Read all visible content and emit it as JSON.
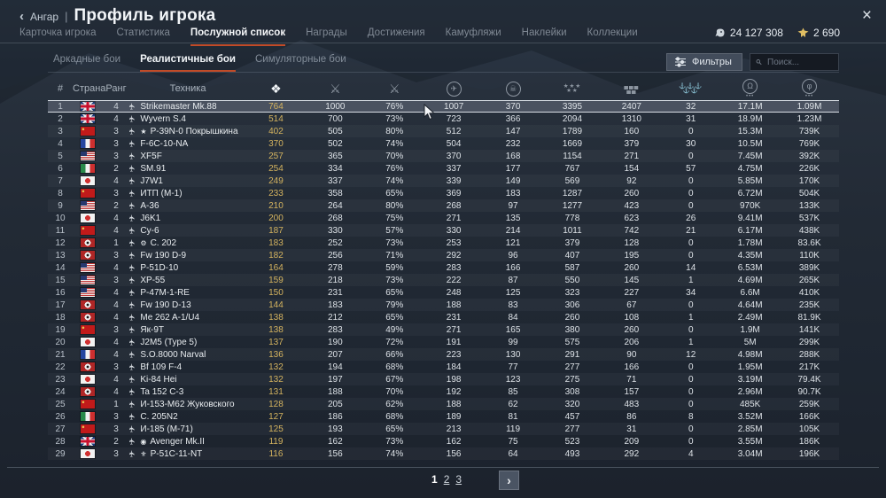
{
  "header": {
    "back_chevron": "‹",
    "back_label": "Ангар",
    "separator": "|",
    "title": "Профиль игрока",
    "close_icon": "×"
  },
  "tabs": [
    {
      "label": "Карточка игрока",
      "active": false
    },
    {
      "label": "Статистика",
      "active": false
    },
    {
      "label": "Послужной список",
      "active": true
    },
    {
      "label": "Награды",
      "active": false
    },
    {
      "label": "Достижения",
      "active": false
    },
    {
      "label": "Камуфляжи",
      "active": false
    },
    {
      "label": "Наклейки",
      "active": false
    },
    {
      "label": "Коллекции",
      "active": false
    }
  ],
  "currency": {
    "silver_lions": "24 127 308",
    "golden_eagles": "2 690",
    "accent_gold": "#dfbe62",
    "accent_silver": "#cdd4db"
  },
  "subtabs": [
    {
      "label": "Аркадные бои",
      "active": false
    },
    {
      "label": "Реалистичные бои",
      "active": true
    },
    {
      "label": "Симуляторные бои",
      "active": false
    }
  ],
  "filters": {
    "button_label": "Фильтры",
    "search_placeholder": "Поиск..."
  },
  "table": {
    "text_headers": [
      "#",
      "Страна",
      "Ранг",
      "Техника"
    ],
    "icon_headers": [
      {
        "name": "sorties-icon",
        "active": true,
        "lines": [
          "❖"
        ]
      },
      {
        "name": "battles-icon",
        "lines": [
          "⚔"
        ]
      },
      {
        "name": "victories-percent-icon",
        "lines": [
          "⚔"
        ]
      },
      {
        "name": "air-targets-destroyed-icon",
        "circle": true,
        "lines": [
          "✈"
        ]
      },
      {
        "name": "deaths-icon",
        "circle": true,
        "lines": [
          "☠"
        ]
      },
      {
        "name": "air-kills-icon",
        "lines": [
          "★★★",
          "★★"
        ]
      },
      {
        "name": "ground-kills-icon",
        "lines": [
          "▄▄▄",
          "▄▄"
        ]
      },
      {
        "name": "naval-kills-icon",
        "lines": [
          "⚓⚓⚓",
          "⚓⚓"
        ]
      },
      {
        "name": "silver-lions-earned-icon",
        "circle": true,
        "lines": [
          "Ω"
        ],
        "under": "•••"
      },
      {
        "name": "research-points-earned-icon",
        "circle": true,
        "lines": [
          "φ"
        ],
        "under": "•••"
      }
    ],
    "rows": [
      {
        "n": 1,
        "c": "gb",
        "country": "Great Britain",
        "r": 4,
        "p": "",
        "name": "Strikemaster Mk.88",
        "v": [
          "764",
          "1000",
          "76%",
          "1007",
          "370",
          "3395",
          "2407",
          "32",
          "17.1M",
          "1.09M"
        ],
        "sel": true
      },
      {
        "n": 2,
        "c": "gb",
        "country": "Great Britain",
        "r": 4,
        "p": "",
        "name": "Wyvern S.4",
        "v": [
          "514",
          "700",
          "73%",
          "723",
          "366",
          "2094",
          "1310",
          "31",
          "18.9M",
          "1.23M"
        ]
      },
      {
        "n": 3,
        "c": "ussr",
        "country": "USSR",
        "r": 3,
        "p": "★",
        "name": "P-39N-0 Покрышкина",
        "v": [
          "402",
          "505",
          "80%",
          "512",
          "147",
          "1789",
          "160",
          "0",
          "15.3M",
          "739K"
        ]
      },
      {
        "n": 4,
        "c": "fr",
        "country": "France",
        "r": 3,
        "p": "",
        "name": "F-6C-10-NA",
        "v": [
          "370",
          "502",
          "74%",
          "504",
          "232",
          "1669",
          "379",
          "30",
          "10.5M",
          "769K"
        ]
      },
      {
        "n": 5,
        "c": "us",
        "country": "USA",
        "r": 3,
        "p": "",
        "name": "XF5F",
        "v": [
          "257",
          "365",
          "70%",
          "370",
          "168",
          "1154",
          "271",
          "0",
          "7.45M",
          "392K"
        ]
      },
      {
        "n": 6,
        "c": "it",
        "country": "Italy",
        "r": 2,
        "p": "",
        "name": "SM.91",
        "v": [
          "254",
          "334",
          "76%",
          "337",
          "177",
          "767",
          "154",
          "57",
          "4.75M",
          "226K"
        ]
      },
      {
        "n": 7,
        "c": "jp",
        "country": "Japan",
        "r": 4,
        "p": "",
        "name": "J7W1",
        "v": [
          "249",
          "337",
          "74%",
          "339",
          "149",
          "569",
          "92",
          "0",
          "5.85M",
          "170K"
        ]
      },
      {
        "n": 8,
        "c": "ussr",
        "country": "USSR",
        "r": 3,
        "p": "",
        "name": "ИТП (М-1)",
        "v": [
          "233",
          "358",
          "65%",
          "369",
          "183",
          "1287",
          "260",
          "0",
          "6.72M",
          "504K"
        ]
      },
      {
        "n": 9,
        "c": "us",
        "country": "USA",
        "r": 2,
        "p": "",
        "name": "A-36",
        "v": [
          "210",
          "264",
          "80%",
          "268",
          "97",
          "1277",
          "423",
          "0",
          "970K",
          "133K"
        ]
      },
      {
        "n": 10,
        "c": "jp",
        "country": "Japan",
        "r": 4,
        "p": "",
        "name": "J6K1",
        "v": [
          "200",
          "268",
          "75%",
          "271",
          "135",
          "778",
          "623",
          "26",
          "9.41M",
          "537K"
        ]
      },
      {
        "n": 11,
        "c": "ussr",
        "country": "USSR",
        "r": 4,
        "p": "",
        "name": "Су-6",
        "v": [
          "187",
          "330",
          "57%",
          "330",
          "214",
          "1011",
          "742",
          "21",
          "6.17M",
          "438K"
        ]
      },
      {
        "n": 12,
        "c": "de",
        "country": "Germany",
        "r": 1,
        "p": "⚙",
        "name": "C. 202",
        "v": [
          "183",
          "252",
          "73%",
          "253",
          "121",
          "379",
          "128",
          "0",
          "1.78M",
          "83.6K"
        ]
      },
      {
        "n": 13,
        "c": "de",
        "country": "Germany",
        "r": 3,
        "p": "",
        "name": "Fw 190 D-9",
        "v": [
          "182",
          "256",
          "71%",
          "292",
          "96",
          "407",
          "195",
          "0",
          "4.35M",
          "110K"
        ]
      },
      {
        "n": 14,
        "c": "us",
        "country": "USA",
        "r": 4,
        "p": "",
        "name": "P-51D-10",
        "v": [
          "164",
          "278",
          "59%",
          "283",
          "166",
          "587",
          "260",
          "14",
          "6.53M",
          "389K"
        ]
      },
      {
        "n": 15,
        "c": "us",
        "country": "USA",
        "r": 3,
        "p": "",
        "name": "XP-55",
        "v": [
          "159",
          "218",
          "73%",
          "222",
          "87",
          "550",
          "145",
          "1",
          "4.69M",
          "265K"
        ]
      },
      {
        "n": 16,
        "c": "us",
        "country": "USA",
        "r": 4,
        "p": "",
        "name": "P-47M-1-RE",
        "v": [
          "150",
          "231",
          "65%",
          "248",
          "125",
          "323",
          "227",
          "34",
          "6.6M",
          "410K"
        ]
      },
      {
        "n": 17,
        "c": "de",
        "country": "Germany",
        "r": 4,
        "p": "",
        "name": "Fw 190 D-13",
        "v": [
          "144",
          "183",
          "79%",
          "188",
          "83",
          "306",
          "67",
          "0",
          "4.64M",
          "235K"
        ]
      },
      {
        "n": 18,
        "c": "de",
        "country": "Germany",
        "r": 4,
        "p": "",
        "name": "Me 262 A-1/U4",
        "v": [
          "138",
          "212",
          "65%",
          "231",
          "84",
          "260",
          "108",
          "1",
          "2.49M",
          "81.9K"
        ]
      },
      {
        "n": 19,
        "c": "ussr",
        "country": "USSR",
        "r": 3,
        "p": "",
        "name": "Як-9Т",
        "v": [
          "138",
          "283",
          "49%",
          "271",
          "165",
          "380",
          "260",
          "0",
          "1.9M",
          "141K"
        ]
      },
      {
        "n": 20,
        "c": "jp",
        "country": "Japan",
        "r": 4,
        "p": "",
        "name": "J2M5 (Type 5)",
        "v": [
          "137",
          "190",
          "72%",
          "191",
          "99",
          "575",
          "206",
          "1",
          "5M",
          "299K"
        ]
      },
      {
        "n": 21,
        "c": "fr",
        "country": "France",
        "r": 4,
        "p": "",
        "name": "S.O.8000 Narval",
        "v": [
          "136",
          "207",
          "66%",
          "223",
          "130",
          "291",
          "90",
          "12",
          "4.98M",
          "288K"
        ]
      },
      {
        "n": 22,
        "c": "de",
        "country": "Germany",
        "r": 3,
        "p": "",
        "name": "Bf 109 F-4",
        "v": [
          "132",
          "194",
          "68%",
          "184",
          "77",
          "277",
          "166",
          "0",
          "1.95M",
          "217K"
        ]
      },
      {
        "n": 23,
        "c": "jp",
        "country": "Japan",
        "r": 4,
        "p": "",
        "name": "Ki-84 Hei",
        "v": [
          "132",
          "197",
          "67%",
          "198",
          "123",
          "275",
          "71",
          "0",
          "3.19M",
          "79.4K"
        ]
      },
      {
        "n": 24,
        "c": "de",
        "country": "Germany",
        "r": 4,
        "p": "",
        "name": "Ta 152 C-3",
        "v": [
          "131",
          "188",
          "70%",
          "192",
          "85",
          "308",
          "157",
          "0",
          "2.96M",
          "90.7K"
        ]
      },
      {
        "n": 25,
        "c": "ussr",
        "country": "USSR",
        "r": 1,
        "p": "",
        "name": "И-153-М62 Жуковского",
        "v": [
          "128",
          "205",
          "62%",
          "188",
          "62",
          "320",
          "483",
          "0",
          "485K",
          "259K"
        ]
      },
      {
        "n": 26,
        "c": "it",
        "country": "Italy",
        "r": 3,
        "p": "",
        "name": "C. 205N2",
        "v": [
          "127",
          "186",
          "68%",
          "189",
          "81",
          "457",
          "86",
          "8",
          "3.52M",
          "166K"
        ]
      },
      {
        "n": 27,
        "c": "ussr",
        "country": "USSR",
        "r": 3,
        "p": "",
        "name": "И-185 (М-71)",
        "v": [
          "125",
          "193",
          "65%",
          "213",
          "119",
          "277",
          "31",
          "0",
          "2.85M",
          "105K"
        ]
      },
      {
        "n": 28,
        "c": "gb",
        "country": "Great Britain",
        "r": 2,
        "p": "◉",
        "name": "Avenger Mk.II",
        "v": [
          "119",
          "162",
          "73%",
          "162",
          "75",
          "523",
          "209",
          "0",
          "3.55M",
          "186K"
        ]
      },
      {
        "n": 29,
        "c": "jp",
        "country": "Japan",
        "r": 3,
        "p": "⚜",
        "name": "P-51C-11-NT",
        "v": [
          "116",
          "156",
          "74%",
          "156",
          "64",
          "493",
          "292",
          "4",
          "3.04M",
          "196K"
        ]
      }
    ]
  },
  "pagination": {
    "pages": [
      {
        "label": "1",
        "current": true
      },
      {
        "label": "2",
        "current": false
      },
      {
        "label": "3",
        "current": false
      }
    ],
    "next_icon": "›"
  },
  "colors": {
    "accent_red": "#c14b28",
    "gold_value": "#d4b35f",
    "selected_row": "#4a5260"
  }
}
